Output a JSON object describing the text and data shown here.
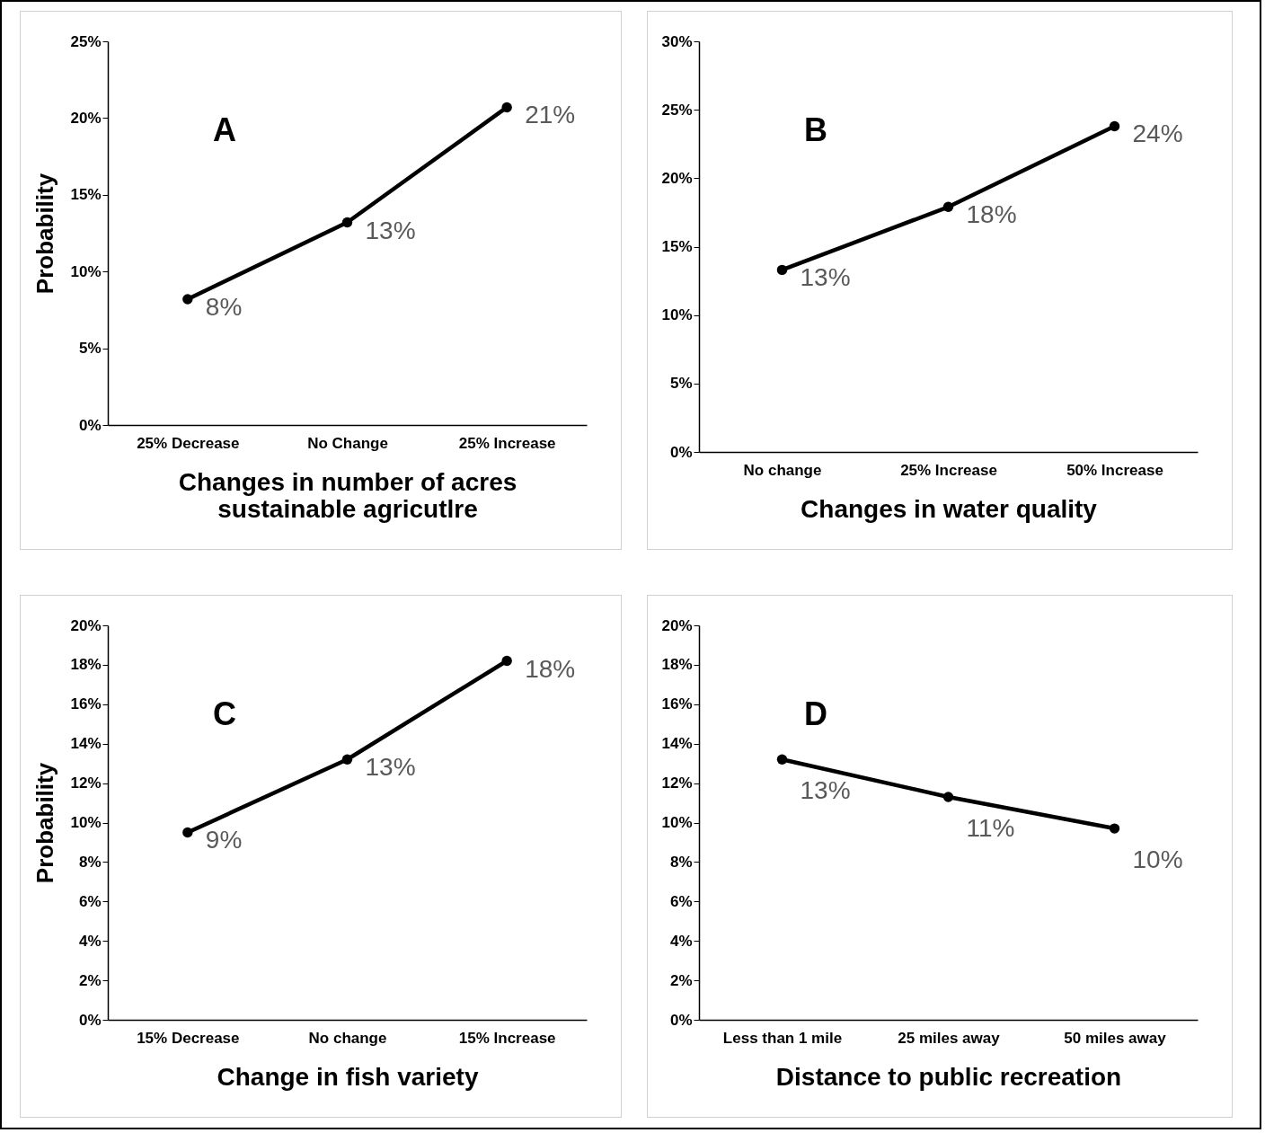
{
  "chart_data": [
    {
      "type": "line",
      "title": "A",
      "categories": [
        "25% Decrease",
        "No Change",
        "25% Increase"
      ],
      "xlabel": "Changes in number of acres sustainable agricutlre",
      "ylabel": "Probability",
      "marker": "circle",
      "ylim": [
        0,
        25
      ],
      "yticks": [
        {
          "value": 0,
          "label": "0%"
        },
        {
          "value": 5,
          "label": "5%"
        },
        {
          "value": 10,
          "label": "10%"
        },
        {
          "value": 15,
          "label": "15%"
        },
        {
          "value": 20,
          "label": "20%"
        },
        {
          "value": 25,
          "label": "25%"
        }
      ],
      "series": [
        {
          "color": "#000000",
          "values": [
            8.2,
            13.2,
            20.7
          ],
          "value_labels": [
            "8%",
            "13%",
            "21%"
          ]
        }
      ]
    },
    {
      "type": "line",
      "title": "B",
      "categories": [
        "No change",
        "25% Increase",
        "50% Increase"
      ],
      "xlabel": "Changes in water quality",
      "marker": "circle",
      "ylim": [
        0,
        30
      ],
      "yticks": [
        {
          "value": 0,
          "label": "0%"
        },
        {
          "value": 5,
          "label": "5%"
        },
        {
          "value": 10,
          "label": "10%"
        },
        {
          "value": 15,
          "label": "15%"
        },
        {
          "value": 20,
          "label": "20%"
        },
        {
          "value": 25,
          "label": "25%"
        },
        {
          "value": 30,
          "label": "30%"
        }
      ],
      "series": [
        {
          "color": "#000000",
          "values": [
            13.3,
            17.9,
            23.8
          ],
          "value_labels": [
            "13%",
            "18%",
            "24%"
          ]
        }
      ]
    },
    {
      "type": "line",
      "title": "C",
      "categories": [
        "15% Decrease",
        "No change",
        "15% Increase"
      ],
      "xlabel": "Change in fish variety",
      "ylabel": "Probability",
      "marker": "circle",
      "ylim": [
        0,
        20
      ],
      "yticks": [
        {
          "value": 0,
          "label": "0%"
        },
        {
          "value": 2,
          "label": "2%"
        },
        {
          "value": 4,
          "label": "4%"
        },
        {
          "value": 6,
          "label": "6%"
        },
        {
          "value": 8,
          "label": "8%"
        },
        {
          "value": 10,
          "label": "10%"
        },
        {
          "value": 12,
          "label": "12%"
        },
        {
          "value": 14,
          "label": "14%"
        },
        {
          "value": 16,
          "label": "16%"
        },
        {
          "value": 18,
          "label": "18%"
        },
        {
          "value": 20,
          "label": "20%"
        }
      ],
      "series": [
        {
          "color": "#000000",
          "values": [
            9.5,
            13.2,
            18.2
          ],
          "value_labels": [
            "9%",
            "13%",
            "18%"
          ]
        }
      ]
    },
    {
      "type": "line",
      "title": "D",
      "categories": [
        "Less than 1 mile",
        "25 miles away",
        "50 miles away"
      ],
      "xlabel": "Distance to public recreation",
      "marker": "circle",
      "ylim": [
        0,
        20
      ],
      "yticks": [
        {
          "value": 0,
          "label": "0%"
        },
        {
          "value": 2,
          "label": "2%"
        },
        {
          "value": 4,
          "label": "4%"
        },
        {
          "value": 6,
          "label": "6%"
        },
        {
          "value": 8,
          "label": "8%"
        },
        {
          "value": 10,
          "label": "10%"
        },
        {
          "value": 12,
          "label": "12%"
        },
        {
          "value": 14,
          "label": "14%"
        },
        {
          "value": 16,
          "label": "16%"
        },
        {
          "value": 18,
          "label": "18%"
        },
        {
          "value": 20,
          "label": "20%"
        }
      ],
      "series": [
        {
          "color": "#000000",
          "values": [
            13.2,
            11.3,
            9.7
          ],
          "value_labels": [
            "13%",
            "11%",
            "10%"
          ]
        }
      ]
    }
  ]
}
